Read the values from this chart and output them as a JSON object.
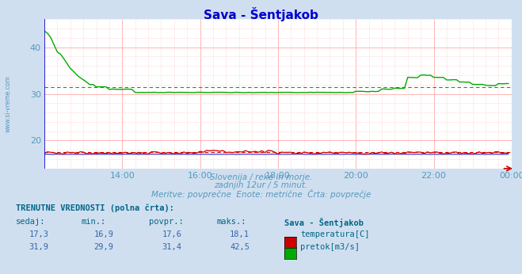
{
  "title": "Sava - Šentjakob",
  "title_color": "#0000cc",
  "bg_color": "#d0dff0",
  "plot_bg_color": "#ffffff",
  "grid_major_color": "#ffaaaa",
  "grid_minor_color": "#ffe0e0",
  "tick_color": "#5599bb",
  "xlim": [
    0,
    144
  ],
  "ylim": [
    14,
    46
  ],
  "yticks": [
    20,
    30,
    40
  ],
  "xtick_labels": [
    "14:00",
    "16:00",
    "18:00",
    "20:00",
    "22:00",
    "00:00"
  ],
  "xtick_positions": [
    24,
    48,
    72,
    96,
    120,
    144
  ],
  "subtitle1": "Slovenija / reke in morje.",
  "subtitle2": "zadnjih 12ur / 5 minut.",
  "subtitle3": "Meritve: povprečne  Enote: metrične  Črta: povprečje",
  "table_header": "TRENUTNE VREDNOSTI (polna črta):",
  "col_headers": [
    "sedaj:",
    "min.:",
    "povpr.:",
    "maks.:",
    "Sava - Šentjakob"
  ],
  "row1": [
    "17,3",
    "16,9",
    "17,6",
    "18,1"
  ],
  "row2": [
    "31,9",
    "29,9",
    "31,4",
    "42,5"
  ],
  "legend1": "temperatura[C]",
  "legend2": "pretok[m3/s]",
  "temp_color": "#cc0000",
  "flow_color": "#00aa00",
  "blue_color": "#0000cc",
  "avg_temp": 17.6,
  "avg_flow": 31.4,
  "side_label": "www.si-vreme.com"
}
